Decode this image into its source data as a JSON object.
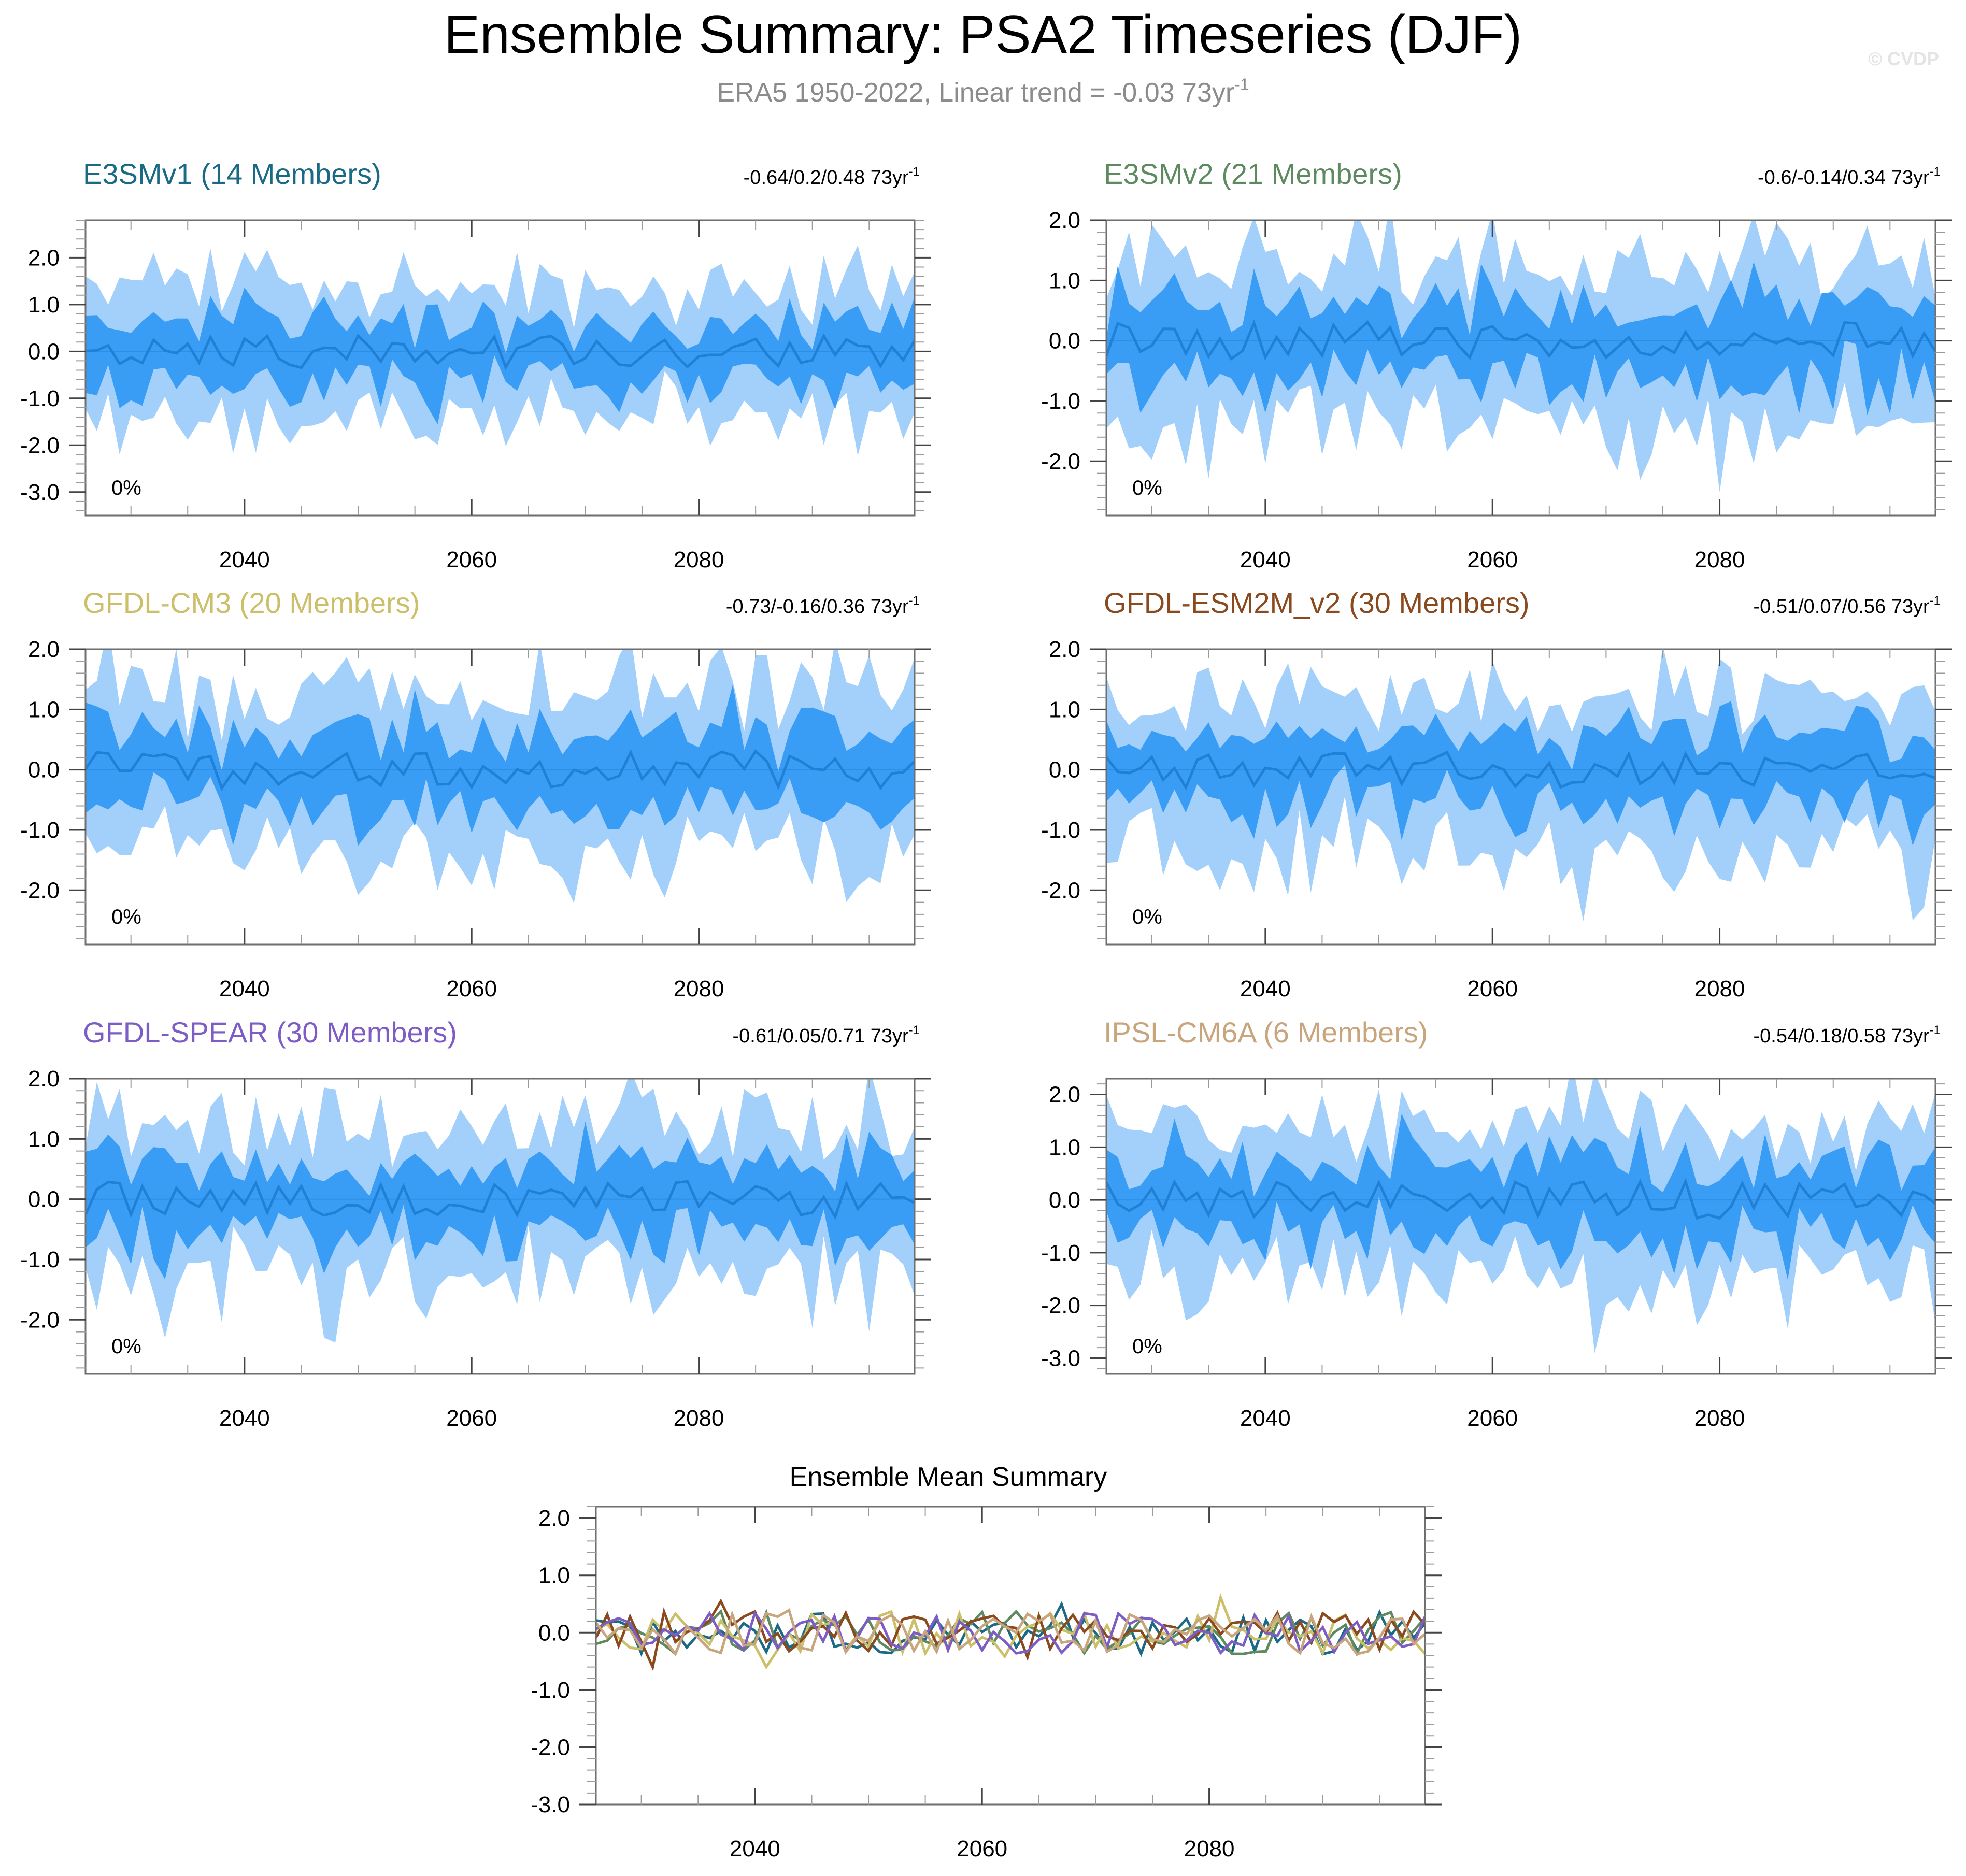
{
  "figure": {
    "title": "Ensemble Summary: PSA2 Timeseries (DJF)",
    "subtitle": "ERA5 1950-2022, Linear trend = -0.03 73yr",
    "subtitle_sup": "-1",
    "watermark": "© CVDP",
    "colors": {
      "band_outer": "#a3d0fb",
      "band_inner": "#3a9df5",
      "mean_line": "#1f80d6",
      "frame": "#6e6e6e",
      "subtitle": "#8c8c8c"
    }
  },
  "chart_data": [
    {
      "id": "e3smv1",
      "type": "area",
      "title": "E3SMv1 (14 Members)",
      "title_color": "#1a6a85",
      "trend": "-0.64/0.2/0.48 73yr",
      "trend_sup": "-1",
      "pct": "0%",
      "x_range": [
        2026,
        2099
      ],
      "ylim": [
        -3.5,
        2.8
      ],
      "yticks": [
        -3,
        -2,
        -1,
        0,
        1,
        2
      ],
      "ytick_labels": [
        "-3.0",
        "-2.0",
        "-1.0",
        "0.0",
        "1.0",
        "2.0"
      ],
      "xticks": [
        2040,
        2060,
        2080
      ],
      "xtick_labels": [
        "2040",
        "2060",
        "2080"
      ],
      "amp": 1.0,
      "bias": 0.0,
      "seed": 11,
      "show_outer": true
    },
    {
      "id": "e3smv2",
      "type": "area",
      "title": "E3SMv2 (21 Members)",
      "title_color": "#5e8a60",
      "trend": "-0.6/-0.14/0.34 73yr",
      "trend_sup": "-1",
      "pct": "0%",
      "x_range": [
        2026,
        2099
      ],
      "ylim": [
        -2.9,
        2.0
      ],
      "yticks": [
        -2,
        -1,
        0,
        1,
        2
      ],
      "ytick_labels": [
        "-2.0",
        "-1.0",
        "0.0",
        "1.0",
        "2.0"
      ],
      "xticks": [
        2040,
        2060,
        2080
      ],
      "xtick_labels": [
        "2040",
        "2060",
        "2080"
      ],
      "amp": 0.9,
      "bias": 0.0,
      "seed": 23,
      "show_outer": true
    },
    {
      "id": "gfdl-cm3",
      "type": "area",
      "title": "GFDL-CM3 (20 Members)",
      "title_color": "#cbbf6a",
      "trend": "-0.73/-0.16/0.36 73yr",
      "trend_sup": "-1",
      "pct": "0%",
      "x_range": [
        2026,
        2099
      ],
      "ylim": [
        -2.9,
        2.0
      ],
      "yticks": [
        -2,
        -1,
        0,
        1,
        2
      ],
      "ytick_labels": [
        "-2.0",
        "-1.0",
        "0.0",
        "1.0",
        "2.0"
      ],
      "xticks": [
        2040,
        2060,
        2080
      ],
      "xtick_labels": [
        "2040",
        "2060",
        "2080"
      ],
      "amp": 0.9,
      "bias": 0.0,
      "seed": 37,
      "show_outer": true
    },
    {
      "id": "gfdl-esm2m",
      "type": "area",
      "title": "GFDL-ESM2M_v2 (30 Members)",
      "title_color": "#8a4a1e",
      "trend": "-0.51/0.07/0.56 73yr",
      "trend_sup": "-1",
      "pct": "0%",
      "x_range": [
        2026,
        2099
      ],
      "ylim": [
        -2.9,
        2.0
      ],
      "yticks": [
        -2,
        -1,
        0,
        1,
        2
      ],
      "ytick_labels": [
        "-2.0",
        "-1.0",
        "0.0",
        "1.0",
        "2.0"
      ],
      "xticks": [
        2040,
        2060,
        2080
      ],
      "xtick_labels": [
        "2040",
        "2060",
        "2080"
      ],
      "amp": 0.85,
      "bias": 0.0,
      "seed": 41,
      "show_outer": true
    },
    {
      "id": "gfdl-spear",
      "type": "area",
      "title": "GFDL-SPEAR (30 Members)",
      "title_color": "#7d5cc6",
      "trend": "-0.61/0.05/0.71 73yr",
      "trend_sup": "-1",
      "pct": "0%",
      "x_range": [
        2026,
        2099
      ],
      "ylim": [
        -2.9,
        2.0
      ],
      "yticks": [
        -2,
        -1,
        0,
        1,
        2
      ],
      "ytick_labels": [
        "-2.0",
        "-1.0",
        "0.0",
        "1.0",
        "2.0"
      ],
      "xticks": [
        2040,
        2060,
        2080
      ],
      "xtick_labels": [
        "2040",
        "2060",
        "2080"
      ],
      "amp": 0.85,
      "bias": 0.0,
      "seed": 53,
      "show_outer": true
    },
    {
      "id": "ipsl-cm6a",
      "type": "area",
      "title": "IPSL-CM6A (6 Members)",
      "title_color": "#c8a57c",
      "trend": "-0.54/0.18/0.58 73yr",
      "trend_sup": "-1",
      "pct": "0%",
      "x_range": [
        2026,
        2099
      ],
      "ylim": [
        -3.3,
        2.3
      ],
      "yticks": [
        -3,
        -2,
        -1,
        0,
        1,
        2
      ],
      "ytick_labels": [
        "-3.0",
        "-2.0",
        "-1.0",
        "0.0",
        "1.0",
        "2.0"
      ],
      "xticks": [
        2040,
        2060,
        2080
      ],
      "xtick_labels": [
        "2040",
        "2060",
        "2080"
      ],
      "amp": 1.0,
      "bias": 0.0,
      "seed": 67,
      "show_outer": true
    },
    {
      "id": "ensemble-mean",
      "type": "line",
      "title": "Ensemble Mean Summary",
      "title_color": "#000000",
      "x_range": [
        2026,
        2099
      ],
      "ylim": [
        -3.0,
        2.2
      ],
      "yticks": [
        -3,
        -2,
        -1,
        0,
        1,
        2
      ],
      "ytick_labels": [
        "-3.0",
        "-2.0",
        "-1.0",
        "0.0",
        "1.0",
        "2.0"
      ],
      "xticks": [
        2040,
        2060,
        2080
      ],
      "xtick_labels": [
        "2040",
        "2060",
        "2080"
      ],
      "series": [
        {
          "name": "E3SMv1",
          "color": "#1a6a85",
          "seed": 11
        },
        {
          "name": "E3SMv2",
          "color": "#5e8a60",
          "seed": 23
        },
        {
          "name": "GFDL-CM3",
          "color": "#cbbf6a",
          "seed": 37
        },
        {
          "name": "GFDL-ESM2M_v2",
          "color": "#8a4a1e",
          "seed": 41
        },
        {
          "name": "GFDL-SPEAR",
          "color": "#7d5cc6",
          "seed": 53
        },
        {
          "name": "IPSL-CM6A",
          "color": "#c8a57c",
          "seed": 67
        }
      ]
    }
  ]
}
